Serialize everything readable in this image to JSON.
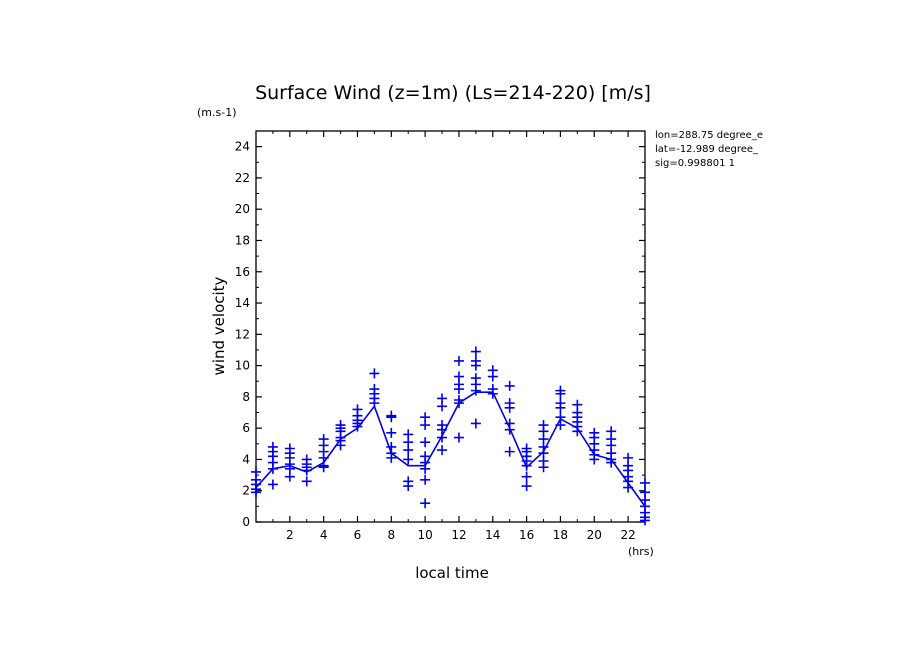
{
  "chart_data": {
    "type": "scatter",
    "title": "Surface Wind (z=1m) (Ls=214-220) [m/s]",
    "y_unit": "(m.s-1)",
    "x_unit": "(hrs)",
    "xlabel": "local time",
    "ylabel": "wind velocity",
    "xlim": [
      0,
      23
    ],
    "ylim": [
      0,
      25
    ],
    "x_ticks": [
      2,
      4,
      6,
      8,
      10,
      12,
      14,
      16,
      18,
      20,
      22
    ],
    "y_ticks": [
      0,
      2,
      4,
      6,
      8,
      10,
      12,
      14,
      16,
      18,
      20,
      22,
      24
    ],
    "info": [
      "lon=288.75 degree_e",
      "lat=-12.989 degree_",
      "sig=0.998801 1"
    ],
    "colors": {
      "series": "#0000ee",
      "axes": "#000000"
    },
    "grid": false,
    "series": [
      {
        "kind": "line",
        "x": [
          0,
          1,
          2,
          3,
          4,
          5,
          6,
          7,
          8,
          9,
          10,
          11,
          12,
          13,
          14,
          15,
          16,
          17,
          18,
          19,
          20,
          21,
          22,
          23
        ],
        "y": [
          2.2,
          3.4,
          3.6,
          3.2,
          3.8,
          5.3,
          6.0,
          7.4,
          4.4,
          3.6,
          3.6,
          5.5,
          7.6,
          8.3,
          8.3,
          6.0,
          3.5,
          4.5,
          6.6,
          6.0,
          4.3,
          4.0,
          2.5,
          1.0
        ]
      },
      {
        "kind": "markers",
        "points": [
          [
            0,
            3.2
          ],
          [
            0,
            2.7
          ],
          [
            0,
            2.4
          ],
          [
            0,
            2.1
          ],
          [
            0,
            1.9
          ],
          [
            1,
            4.8
          ],
          [
            1,
            4.5
          ],
          [
            1,
            4.2
          ],
          [
            1,
            3.8
          ],
          [
            1,
            3.4
          ],
          [
            1,
            2.4
          ],
          [
            2,
            4.7
          ],
          [
            2,
            4.4
          ],
          [
            2,
            4.1
          ],
          [
            2,
            3.7
          ],
          [
            2,
            3.4
          ],
          [
            2,
            2.9
          ],
          [
            3,
            4.0
          ],
          [
            3,
            3.7
          ],
          [
            3,
            3.5
          ],
          [
            3,
            3.3
          ],
          [
            3,
            2.6
          ],
          [
            4,
            5.3
          ],
          [
            4,
            4.9
          ],
          [
            4,
            4.5
          ],
          [
            4,
            4.1
          ],
          [
            4,
            3.6
          ],
          [
            4,
            3.5
          ],
          [
            5,
            6.2
          ],
          [
            5,
            6.0
          ],
          [
            5,
            5.8
          ],
          [
            5,
            5.4
          ],
          [
            5,
            5.2
          ],
          [
            5,
            4.9
          ],
          [
            6,
            7.2
          ],
          [
            6,
            6.8
          ],
          [
            6,
            6.5
          ],
          [
            6,
            6.3
          ],
          [
            6,
            6.1
          ],
          [
            7,
            9.5
          ],
          [
            7,
            8.5
          ],
          [
            7,
            8.2
          ],
          [
            7,
            7.9
          ],
          [
            7,
            7.6
          ],
          [
            8,
            6.8
          ],
          [
            8,
            6.7
          ],
          [
            8,
            5.7
          ],
          [
            8,
            4.8
          ],
          [
            8,
            4.4
          ],
          [
            8,
            4.1
          ],
          [
            9,
            5.6
          ],
          [
            9,
            5.1
          ],
          [
            9,
            4.6
          ],
          [
            9,
            4.0
          ],
          [
            9,
            2.6
          ],
          [
            9,
            2.3
          ],
          [
            10,
            6.7
          ],
          [
            10,
            6.2
          ],
          [
            10,
            5.1
          ],
          [
            10,
            4.2
          ],
          [
            10,
            3.8
          ],
          [
            10,
            3.4
          ],
          [
            10,
            2.7
          ],
          [
            10,
            1.2
          ],
          [
            11,
            7.9
          ],
          [
            11,
            7.4
          ],
          [
            11,
            6.2
          ],
          [
            11,
            5.9
          ],
          [
            11,
            5.4
          ],
          [
            11,
            4.6
          ],
          [
            12,
            10.3
          ],
          [
            12,
            9.3
          ],
          [
            12,
            8.8
          ],
          [
            12,
            8.5
          ],
          [
            12,
            7.8
          ],
          [
            12,
            7.6
          ],
          [
            12,
            5.4
          ],
          [
            13,
            10.9
          ],
          [
            13,
            10.3
          ],
          [
            13,
            10.0
          ],
          [
            13,
            9.2
          ],
          [
            13,
            8.8
          ],
          [
            13,
            8.4
          ],
          [
            13,
            6.3
          ],
          [
            14,
            9.7
          ],
          [
            14,
            9.3
          ],
          [
            14,
            8.5
          ],
          [
            14,
            8.2
          ],
          [
            15,
            8.7
          ],
          [
            15,
            7.6
          ],
          [
            15,
            7.3
          ],
          [
            15,
            6.3
          ],
          [
            15,
            5.9
          ],
          [
            15,
            4.5
          ],
          [
            16,
            4.7
          ],
          [
            16,
            4.5
          ],
          [
            16,
            4.2
          ],
          [
            16,
            3.9
          ],
          [
            16,
            3.6
          ],
          [
            16,
            2.9
          ],
          [
            16,
            2.3
          ],
          [
            17,
            6.2
          ],
          [
            17,
            5.8
          ],
          [
            17,
            5.3
          ],
          [
            17,
            4.8
          ],
          [
            17,
            4.4
          ],
          [
            17,
            3.9
          ],
          [
            17,
            3.5
          ],
          [
            18,
            8.4
          ],
          [
            18,
            8.2
          ],
          [
            18,
            7.6
          ],
          [
            18,
            7.3
          ],
          [
            18,
            6.7
          ],
          [
            18,
            6.2
          ],
          [
            19,
            7.5
          ],
          [
            19,
            7.0
          ],
          [
            19,
            6.7
          ],
          [
            19,
            6.4
          ],
          [
            19,
            6.1
          ],
          [
            19,
            5.8
          ],
          [
            20,
            5.7
          ],
          [
            20,
            5.4
          ],
          [
            20,
            5.0
          ],
          [
            20,
            4.6
          ],
          [
            20,
            4.3
          ],
          [
            20,
            4.0
          ],
          [
            21,
            5.8
          ],
          [
            21,
            5.3
          ],
          [
            21,
            4.9
          ],
          [
            21,
            4.4
          ],
          [
            21,
            4.0
          ],
          [
            21,
            3.8
          ],
          [
            22,
            4.1
          ],
          [
            22,
            3.6
          ],
          [
            22,
            3.3
          ],
          [
            22,
            2.9
          ],
          [
            22,
            2.6
          ],
          [
            22,
            2.2
          ],
          [
            23,
            2.5
          ],
          [
            23,
            1.9
          ],
          [
            23,
            1.4
          ],
          [
            23,
            1.0
          ],
          [
            23,
            0.6
          ],
          [
            23,
            0.3
          ],
          [
            23,
            0.1
          ]
        ]
      }
    ]
  }
}
